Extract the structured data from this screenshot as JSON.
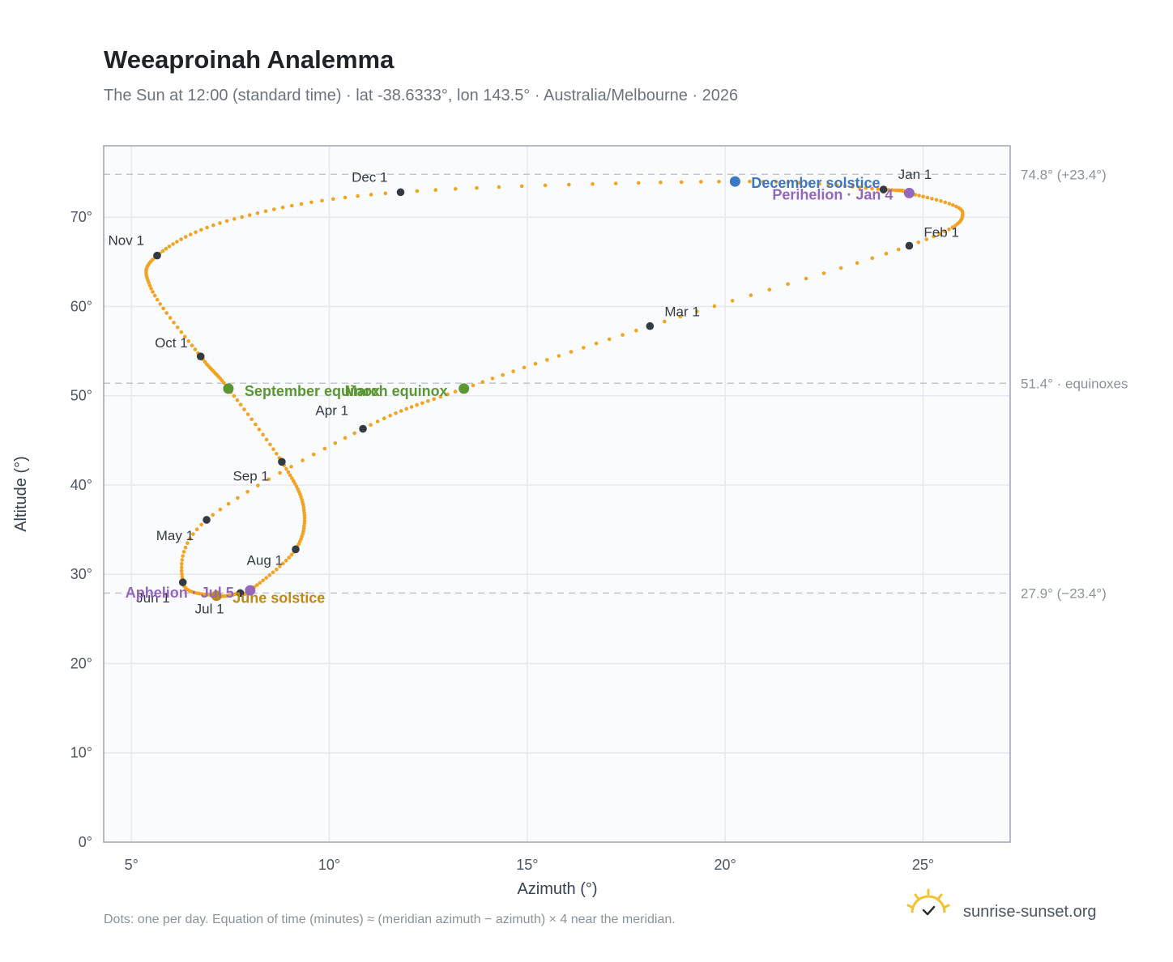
{
  "header": {
    "title": "Weeaproinah Analemma",
    "subtitle": "The Sun at 12:00 (standard time) · lat -38.6333°, lon 143.5° · Australia/Melbourne · 2026"
  },
  "footer": {
    "note": "Dots: one per day. Equation of time (minutes) ≈ (meridian azimuth − azimuth) × 4 near the meridian.",
    "brand": "sunrise-sunset.org"
  },
  "colors": {
    "analemma": "#f2a322",
    "month_marker": "#333a42",
    "december_solstice": "#3a78c2",
    "june_solstice": "#c08a12",
    "equinox": "#5a9632",
    "apsis": "#9467bd",
    "grid": "#e5e9ef",
    "plot_bg": "#f9fbfd",
    "frame": "#9aa5b4",
    "reference_line": "#bfc7d2"
  },
  "chart_data": {
    "type": "scatter",
    "xlabel": "Azimuth (°)",
    "ylabel": "Altitude (°)",
    "xlim": [
      4.3,
      27.2
    ],
    "ylim": [
      0,
      78
    ],
    "xticks": [
      5,
      10,
      15,
      20,
      25
    ],
    "yticks": [
      0,
      10,
      20,
      30,
      40,
      50,
      60,
      70
    ],
    "tick_suffix": "°",
    "grid": true,
    "reference_lines": [
      {
        "y": 74.8,
        "label": "74.8° (+23.4°)"
      },
      {
        "y": 51.4,
        "label": "51.4° · equinoxes"
      },
      {
        "y": 27.9,
        "label": "27.9° (−23.4°)"
      }
    ],
    "month_markers": [
      {
        "label": "Jan 1",
        "x": 24.0,
        "y": 73.1
      },
      {
        "label": "Feb 1",
        "x": 24.65,
        "y": 66.8
      },
      {
        "label": "Mar 1",
        "x": 18.1,
        "y": 57.8
      },
      {
        "label": "Apr 1",
        "x": 10.85,
        "y": 46.3
      },
      {
        "label": "May 1",
        "x": 6.9,
        "y": 36.1
      },
      {
        "label": "Jun 1",
        "x": 6.3,
        "y": 29.1
      },
      {
        "label": "Jul 1",
        "x": 7.75,
        "y": 27.9
      },
      {
        "label": "Aug 1",
        "x": 9.15,
        "y": 32.8
      },
      {
        "label": "Sep 1",
        "x": 8.8,
        "y": 42.6
      },
      {
        "label": "Oct 1",
        "x": 6.75,
        "y": 54.4
      },
      {
        "label": "Nov 1",
        "x": 5.65,
        "y": 65.7
      },
      {
        "label": "Dec 1",
        "x": 11.8,
        "y": 72.8
      }
    ],
    "events": [
      {
        "label": "December solstice",
        "x": 20.25,
        "y": 74.0,
        "kind": "december_solstice"
      },
      {
        "label": "Perihelion · Jan 4",
        "x": 24.65,
        "y": 72.7,
        "kind": "apsis"
      },
      {
        "label": "March equinox",
        "x": 13.4,
        "y": 50.8,
        "kind": "equinox"
      },
      {
        "label": "September equinox",
        "x": 7.45,
        "y": 50.8,
        "kind": "equinox"
      },
      {
        "label": "June solstice",
        "x": 7.15,
        "y": 27.6,
        "kind": "june_solstice"
      },
      {
        "label": "Aphelion · Jul 5",
        "x": 8.0,
        "y": 28.2,
        "kind": "apsis"
      }
    ],
    "path_keypoints": [
      {
        "date": "Jan 1",
        "x": 24.0,
        "y": 73.1
      },
      {
        "date": "Jan 4",
        "x": 24.65,
        "y": 72.7
      },
      {
        "date": "Jan 20",
        "x": 26.0,
        "y": 70.5
      },
      {
        "date": "Feb 1",
        "x": 24.65,
        "y": 66.8
      },
      {
        "date": "Mar 1",
        "x": 18.1,
        "y": 57.8
      },
      {
        "date": "Mar 20",
        "x": 13.4,
        "y": 50.8
      },
      {
        "date": "Apr 1",
        "x": 10.85,
        "y": 46.3
      },
      {
        "date": "May 1",
        "x": 6.9,
        "y": 36.1
      },
      {
        "date": "Jun 1",
        "x": 6.3,
        "y": 29.1
      },
      {
        "date": "Jun 21",
        "x": 7.15,
        "y": 27.6
      },
      {
        "date": "Jul 1",
        "x": 7.75,
        "y": 27.9
      },
      {
        "date": "Jul 5",
        "x": 8.0,
        "y": 28.2
      },
      {
        "date": "Aug 1",
        "x": 9.15,
        "y": 32.8
      },
      {
        "date": "Aug 15",
        "x": 9.35,
        "y": 37.5
      },
      {
        "date": "Sep 1",
        "x": 8.8,
        "y": 42.6
      },
      {
        "date": "Sep 22",
        "x": 7.45,
        "y": 50.8
      },
      {
        "date": "Oct 1",
        "x": 6.75,
        "y": 54.4
      },
      {
        "date": "Oct 20",
        "x": 5.5,
        "y": 62.0
      },
      {
        "date": "Nov 1",
        "x": 5.65,
        "y": 65.7
      },
      {
        "date": "Nov 15",
        "x": 7.6,
        "y": 69.8
      },
      {
        "date": "Dec 1",
        "x": 11.8,
        "y": 72.8
      },
      {
        "date": "Dec 21",
        "x": 20.25,
        "y": 74.0
      },
      {
        "date": "Jan 1",
        "x": 24.0,
        "y": 73.1
      }
    ]
  }
}
